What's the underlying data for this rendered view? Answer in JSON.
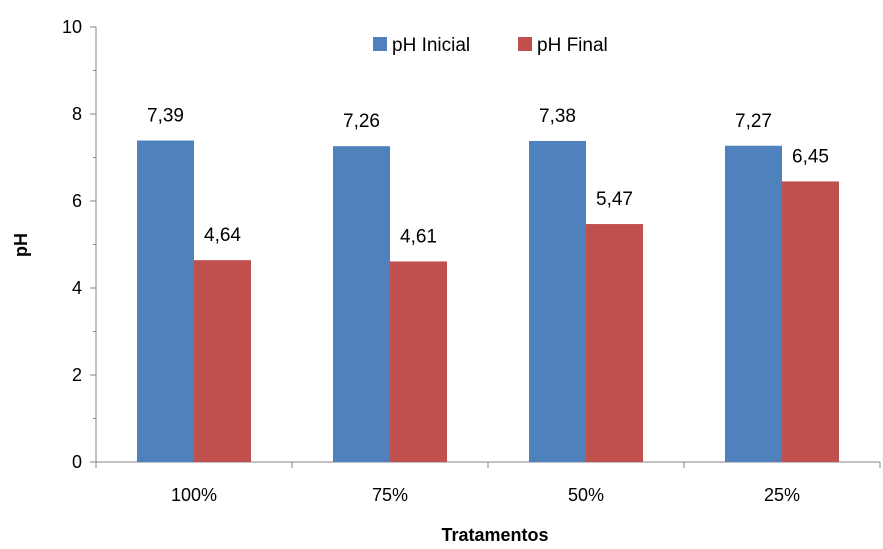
{
  "chart_data": {
    "type": "bar",
    "categories": [
      "100%",
      "75%",
      "50%",
      "25%"
    ],
    "series": [
      {
        "name": "pH Inicial",
        "values": [
          7.39,
          7.26,
          7.38,
          7.27
        ],
        "labels": [
          "7,39",
          "7,26",
          "7,38",
          "7,27"
        ],
        "color": "#4F81BD"
      },
      {
        "name": "pH Final",
        "values": [
          4.64,
          4.61,
          5.47,
          6.45
        ],
        "labels": [
          "4,64",
          "4,61",
          "5,47",
          "6,45"
        ],
        "color": "#C0504D"
      }
    ],
    "xlabel": "Tratamentos",
    "ylabel": "pH",
    "ylim": [
      0,
      10
    ],
    "yticks": [
      "0",
      "2",
      "4",
      "6",
      "8",
      "10"
    ],
    "legend_position": "top-center",
    "grid": false
  }
}
